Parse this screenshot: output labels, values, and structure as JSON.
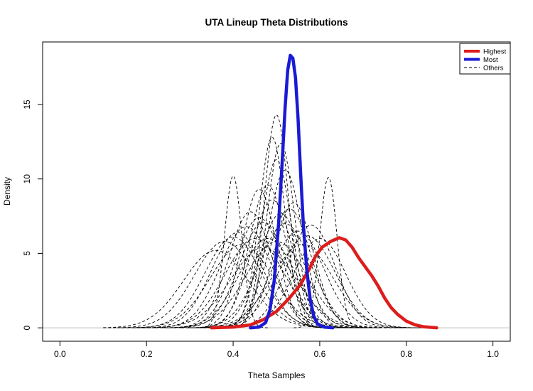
{
  "chart_data": {
    "type": "line",
    "title": "UTA Lineup Theta Distributions",
    "xlabel": "Theta Samples",
    "ylabel": "Density",
    "xlim": [
      -0.04,
      1.04
    ],
    "ylim": [
      -0.9,
      19.2
    ],
    "x_ticks": [
      0.0,
      0.2,
      0.4,
      0.6,
      0.8,
      1.0
    ],
    "x_tick_labels": [
      "0.0",
      "0.2",
      "0.4",
      "0.6",
      "0.8",
      "1.0"
    ],
    "y_ticks": [
      0,
      5,
      10,
      15
    ],
    "y_tick_labels": [
      "0",
      "5",
      "10",
      "15"
    ],
    "grid": false,
    "baseline_y": 0,
    "legend_position": "top-right",
    "legend": [
      {
        "label": "Highest",
        "color": "#dd1c1c",
        "style": "solid"
      },
      {
        "label": "Most",
        "color": "#1a1ad6",
        "style": "solid"
      },
      {
        "label": "Others",
        "color": "#000000",
        "style": "dashed"
      }
    ],
    "highlight_series": [
      {
        "name": "Highest",
        "color": "#dd1c1c",
        "points": [
          [
            0.35,
            0.0
          ],
          [
            0.4,
            0.05
          ],
          [
            0.44,
            0.2
          ],
          [
            0.47,
            0.55
          ],
          [
            0.5,
            1.1
          ],
          [
            0.53,
            2.0
          ],
          [
            0.555,
            2.9
          ],
          [
            0.575,
            3.9
          ],
          [
            0.59,
            4.8
          ],
          [
            0.605,
            5.4
          ],
          [
            0.625,
            5.8
          ],
          [
            0.645,
            6.05
          ],
          [
            0.66,
            5.9
          ],
          [
            0.675,
            5.4
          ],
          [
            0.69,
            4.7
          ],
          [
            0.705,
            4.1
          ],
          [
            0.72,
            3.5
          ],
          [
            0.735,
            2.8
          ],
          [
            0.75,
            2.0
          ],
          [
            0.765,
            1.35
          ],
          [
            0.78,
            0.9
          ],
          [
            0.8,
            0.45
          ],
          [
            0.82,
            0.2
          ],
          [
            0.84,
            0.07
          ],
          [
            0.87,
            0.0
          ]
        ]
      },
      {
        "name": "Most",
        "color": "#1a1ad6",
        "points": [
          [
            0.44,
            0.0
          ],
          [
            0.46,
            0.05
          ],
          [
            0.475,
            0.35
          ],
          [
            0.485,
            1.2
          ],
          [
            0.495,
            3.2
          ],
          [
            0.505,
            7.0
          ],
          [
            0.513,
            11.0
          ],
          [
            0.52,
            14.8
          ],
          [
            0.526,
            17.3
          ],
          [
            0.532,
            18.3
          ],
          [
            0.538,
            18.1
          ],
          [
            0.544,
            16.8
          ],
          [
            0.55,
            14.0
          ],
          [
            0.556,
            10.3
          ],
          [
            0.562,
            7.0
          ],
          [
            0.57,
            3.9
          ],
          [
            0.578,
            1.9
          ],
          [
            0.586,
            0.8
          ],
          [
            0.595,
            0.25
          ],
          [
            0.61,
            0.05
          ],
          [
            0.63,
            0.0
          ]
        ]
      }
    ],
    "others": [
      {
        "mu": 0.4,
        "sd": 0.02,
        "peak": 10.2
      },
      {
        "mu": 0.62,
        "sd": 0.02,
        "peak": 10.1
      },
      {
        "mu": 0.5,
        "sd": 0.028,
        "peak": 14.3
      },
      {
        "mu": 0.49,
        "sd": 0.03,
        "peak": 12.8
      },
      {
        "mu": 0.51,
        "sd": 0.032,
        "peak": 12.4
      },
      {
        "mu": 0.5,
        "sd": 0.035,
        "peak": 11.3
      },
      {
        "mu": 0.52,
        "sd": 0.04,
        "peak": 10.6
      },
      {
        "mu": 0.48,
        "sd": 0.042,
        "peak": 9.6
      },
      {
        "mu": 0.49,
        "sd": 0.048,
        "peak": 8.6
      },
      {
        "mu": 0.53,
        "sd": 0.05,
        "peak": 8.0
      },
      {
        "mu": 0.46,
        "sd": 0.055,
        "peak": 7.4
      },
      {
        "mu": 0.43,
        "sd": 0.06,
        "peak": 6.8
      },
      {
        "mu": 0.55,
        "sd": 0.06,
        "peak": 6.5
      },
      {
        "mu": 0.4,
        "sd": 0.065,
        "peak": 6.1
      },
      {
        "mu": 0.45,
        "sd": 0.068,
        "peak": 6.0
      },
      {
        "mu": 0.5,
        "sd": 0.07,
        "peak": 5.8
      },
      {
        "mu": 0.57,
        "sd": 0.065,
        "peak": 6.2
      },
      {
        "mu": 0.42,
        "sd": 0.072,
        "peak": 5.6
      },
      {
        "mu": 0.47,
        "sd": 0.075,
        "peak": 5.4
      },
      {
        "mu": 0.52,
        "sd": 0.06,
        "peak": 7.0
      },
      {
        "mu": 0.44,
        "sd": 0.05,
        "peak": 7.8
      },
      {
        "mu": 0.38,
        "sd": 0.07,
        "peak": 5.8
      },
      {
        "mu": 0.58,
        "sd": 0.055,
        "peak": 6.9
      },
      {
        "mu": 0.54,
        "sd": 0.045,
        "peak": 8.4
      },
      {
        "mu": 0.46,
        "sd": 0.04,
        "peak": 9.3
      },
      {
        "mu": 0.41,
        "sd": 0.06,
        "peak": 6.4
      },
      {
        "mu": 0.56,
        "sd": 0.07,
        "peak": 5.6
      },
      {
        "mu": 0.48,
        "sd": 0.065,
        "peak": 6.0
      },
      {
        "mu": 0.36,
        "sd": 0.075,
        "peak": 5.2
      },
      {
        "mu": 0.6,
        "sd": 0.06,
        "peak": 6.0
      },
      {
        "mu": 0.47,
        "sd": 0.055,
        "peak": 7.1
      },
      {
        "mu": 0.51,
        "sd": 0.05,
        "peak": 7.7
      }
    ]
  }
}
